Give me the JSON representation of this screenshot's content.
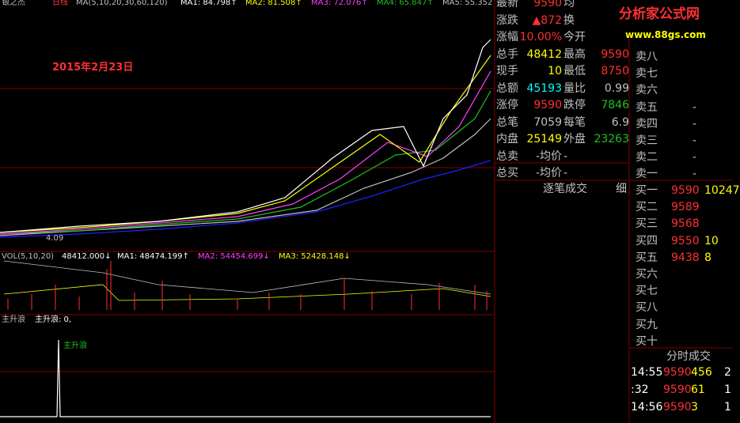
{
  "header": {
    "name": "银之杰",
    "period": "日线",
    "ma_params": "MA(5,10,20,30,60,120)",
    "ma": [
      "MA1: 84.798↑",
      "MA2: 81.508↑",
      "MA3: 72.076↑",
      "MA4: 65.847↑",
      "MA5: 55.352"
    ]
  },
  "annotation": "2015年2月23日",
  "low_label": "4.09",
  "volume": {
    "params": "VOL(5,10,20)",
    "value": "48412.000↓",
    "ma": [
      "MA1: 48474.199↑",
      "MA2: 54454.699↓",
      "MA3: 52428.148↓"
    ]
  },
  "indicator": {
    "name": "主升浪",
    "value_label": "主升浪: 0,",
    "signal": "主升浪"
  },
  "logo": {
    "title": "分析家公式网",
    "url": "www.88gs.com"
  },
  "quote": {
    "rows": [
      [
        "最新",
        "9590",
        "均"
      ],
      [
        "涨跌",
        "▲872",
        "换"
      ],
      [
        "涨幅",
        "10.00%",
        "今开"
      ],
      [
        "总手",
        "48412",
        "最高",
        "9590"
      ],
      [
        "现手",
        "10",
        "最低",
        "8750"
      ],
      [
        "总额",
        "45193",
        "量比",
        "0.99"
      ],
      [
        "涨停",
        "9590",
        "跌停",
        "7846"
      ],
      [
        "总笔",
        "7059",
        "每笔",
        "6.9"
      ],
      [
        "内盘",
        "25149",
        "外盘",
        "23263"
      ],
      [
        "总卖",
        "-均价",
        "-"
      ],
      [
        "总买",
        "-均价",
        "-"
      ]
    ]
  },
  "trade_tab": [
    "逐笔成交",
    "细"
  ],
  "orderbook": {
    "sell": [
      [
        "卖八"
      ],
      [
        "卖七"
      ],
      [
        "卖六"
      ],
      [
        "卖五",
        "-"
      ],
      [
        "卖四",
        "-"
      ],
      [
        "卖三",
        "-"
      ],
      [
        "卖二",
        "-"
      ],
      [
        "卖一",
        "-"
      ]
    ],
    "buy": [
      [
        "买一",
        "9590",
        "10247"
      ],
      [
        "买二",
        "9589"
      ],
      [
        "买三",
        "9568"
      ],
      [
        "买四",
        "9550",
        "10"
      ],
      [
        "买五",
        "9438",
        "8"
      ],
      [
        "买六"
      ],
      [
        "买七"
      ],
      [
        "买八"
      ],
      [
        "买九"
      ],
      [
        "买十"
      ]
    ]
  },
  "ticks_tab": "分时成交",
  "ticks": [
    [
      "14:55",
      "9590",
      "456",
      "2"
    ],
    [
      ":32",
      "9590",
      "61",
      "1"
    ],
    [
      "14:56",
      "9590",
      "3",
      "1"
    ]
  ]
}
